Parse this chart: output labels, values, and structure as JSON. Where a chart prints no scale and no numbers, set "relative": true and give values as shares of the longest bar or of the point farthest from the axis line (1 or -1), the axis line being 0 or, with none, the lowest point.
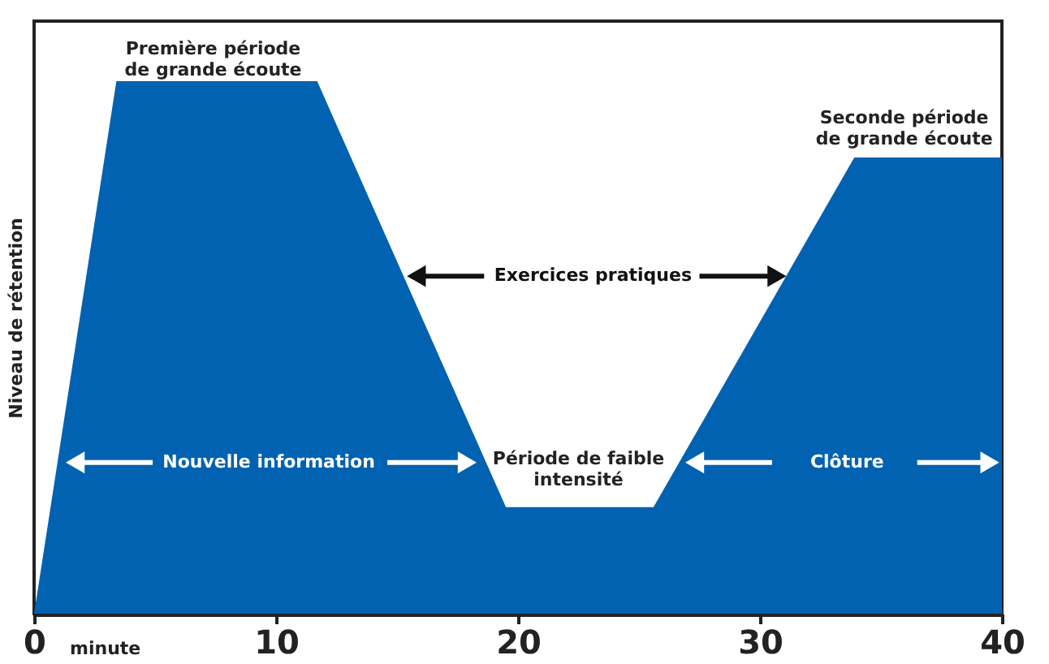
{
  "chart_data": {
    "type": "area",
    "relative": true,
    "xlabel": "minute",
    "ylabel": "Niveau de rétention",
    "x": [
      0,
      3.4,
      11.7,
      19.5,
      25.6,
      33.9,
      40
    ],
    "series": [
      {
        "color": "#0062b1",
        "values": [
          0,
          1,
          1,
          0.2,
          0.2,
          0.857,
          0.857
        ]
      }
    ],
    "xlim": [
      0,
      40
    ],
    "xticks": [
      0,
      10,
      20,
      30,
      40
    ],
    "grid": false,
    "annotations": [
      "Première période\nde grande écoute",
      "Seconde période\nde grande écoute",
      "Exercices pratiques",
      "Nouvelle information",
      "Période de faible\nintensité",
      "Clôture"
    ]
  }
}
